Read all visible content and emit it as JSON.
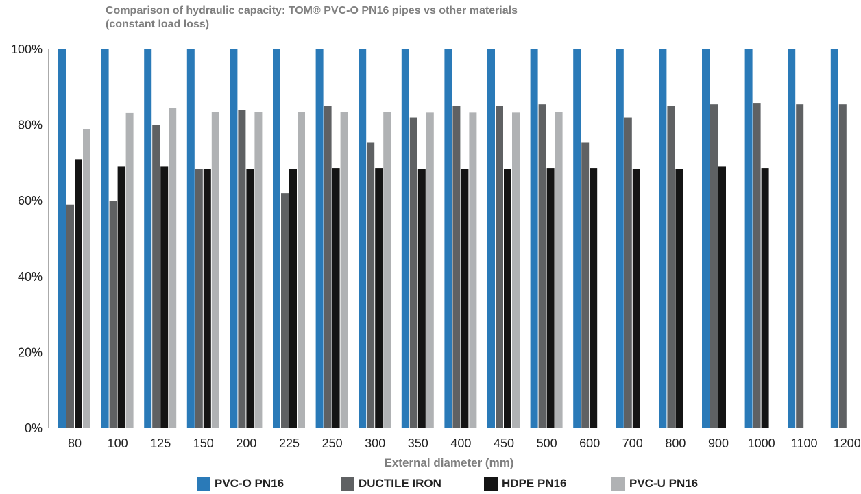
{
  "chart_data": {
    "type": "bar",
    "title_line1": "Comparison of hydraulic capacity: TOM® PVC-O PN16 pipes vs other materials",
    "title_line2": "(constant load loss)",
    "xlabel": "External diameter (mm)",
    "ylabel": "",
    "ylim": [
      0,
      100
    ],
    "yticks": [
      "0%",
      "20%",
      "40%",
      "60%",
      "80%",
      "100%"
    ],
    "categories": [
      "80",
      "100",
      "125",
      "150",
      "200",
      "225",
      "250",
      "300",
      "350",
      "400",
      "450",
      "500",
      "600",
      "700",
      "800",
      "900",
      "1000",
      "1100",
      "1200"
    ],
    "series": [
      {
        "name": "PVC-O PN16",
        "color": "#2a7ab8",
        "values": [
          100,
          100,
          100,
          100,
          100,
          100,
          100,
          100,
          100,
          100,
          100,
          100,
          100,
          100,
          100,
          100,
          100,
          100,
          100
        ]
      },
      {
        "name": "DUCTILE IRON",
        "color": "#5f6163",
        "values": [
          59,
          60,
          80,
          68.5,
          84,
          62,
          85,
          75.5,
          82,
          85,
          85,
          85.5,
          75.5,
          82,
          85,
          85.5,
          85.7,
          85.5,
          85.5
        ]
      },
      {
        "name": "HDPE PN16",
        "color": "#141414",
        "values": [
          71,
          69,
          69,
          68.5,
          68.5,
          68.5,
          68.7,
          68.7,
          68.5,
          68.5,
          68.5,
          68.7,
          68.7,
          68.5,
          68.5,
          69,
          68.7,
          null,
          null
        ]
      },
      {
        "name": "PVC-U PN16",
        "color": "#b0b2b4",
        "values": [
          79,
          83.2,
          84.5,
          83.5,
          83.5,
          83.5,
          83.5,
          83.5,
          83.3,
          83.3,
          83.3,
          83.5,
          null,
          null,
          null,
          null,
          null,
          null,
          null
        ]
      }
    ],
    "legend_position": "bottom",
    "grid": false
  }
}
